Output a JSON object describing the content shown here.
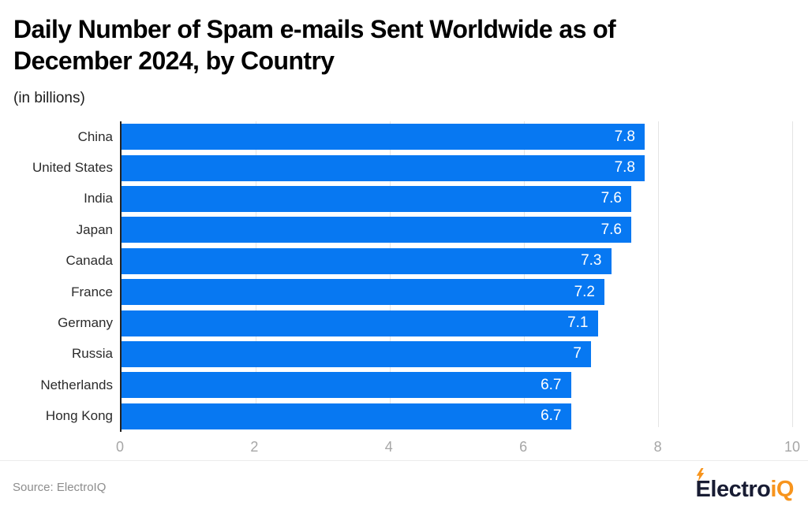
{
  "header": {
    "title": "Daily Number of Spam e-mails Sent Worldwide as of December 2024, by Country",
    "subtitle": "(in billions)"
  },
  "chart_data": {
    "type": "bar",
    "orientation": "horizontal",
    "title": "Daily Number of Spam e-mails Sent Worldwide as of December 2024, by Country",
    "subtitle": "(in billions)",
    "unit": "billions",
    "categories": [
      "China",
      "United States",
      "India",
      "Japan",
      "Canada",
      "France",
      "Germany",
      "Russia",
      "Netherlands",
      "Hong Kong"
    ],
    "values": [
      7.8,
      7.8,
      7.6,
      7.6,
      7.3,
      7.2,
      7.1,
      7,
      6.7,
      6.7
    ],
    "value_labels": [
      "7.8",
      "7.8",
      "7.6",
      "7.6",
      "7.3",
      "7.2",
      "7.1",
      "7",
      "6.7",
      "6.7"
    ],
    "xlabel": "",
    "ylabel": "",
    "xlim": [
      0,
      10
    ],
    "x_ticks": [
      "0",
      "2",
      "4",
      "6",
      "8",
      "10"
    ],
    "grid": "vertical-light",
    "legend": "none",
    "bar_color": "#0778f2",
    "value_label_color": "#ffffff"
  },
  "footer": {
    "source": "Source: ElectroIQ",
    "logo": {
      "text_dark": "Electro",
      "text_orange": "iQ",
      "icon": "lightning-bolt-icon",
      "dark_color": "#181c33",
      "orange_color": "#f7941d"
    }
  },
  "colors": {
    "background": "#ffffff",
    "title": "#000000",
    "axis_line": "#222222",
    "tick_label": "#a6a6a6",
    "gridline": "#e4e4e4",
    "category_label": "#2b2b2b",
    "source_text": "#8d8d8d",
    "divider": "#ececec"
  }
}
